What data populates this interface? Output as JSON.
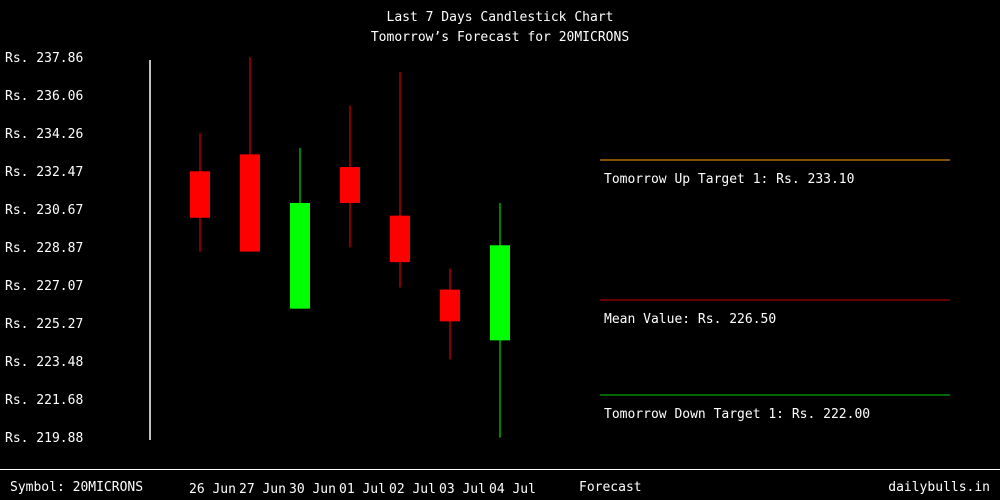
{
  "chart_data": {
    "type": "candlestick",
    "title": "Last 7 Days Candlestick Chart",
    "subtitle": "Tomorrow’s Forecast for 20MICRONS",
    "y_ticks": [
      "Rs. 237.86",
      "Rs. 236.06",
      "Rs. 234.26",
      "Rs. 232.47",
      "Rs. 230.67",
      "Rs. 228.87",
      "Rs. 227.07",
      "Rs. 225.27",
      "Rs. 223.48",
      "Rs. 221.68",
      "Rs. 219.88"
    ],
    "ylim": [
      219.88,
      237.86
    ],
    "categories": [
      "26 Jun",
      "27 Jun",
      "30 Jun",
      "01 Jul",
      "02 Jul",
      "03 Jul",
      "04 Jul"
    ],
    "candles": [
      {
        "date": "26 Jun",
        "open": 232.5,
        "high": 234.3,
        "low": 228.7,
        "close": 230.3,
        "color": "#ff0000"
      },
      {
        "date": "27 Jun",
        "open": 233.3,
        "high": 237.9,
        "low": 228.8,
        "close": 228.7,
        "color": "#ff0000"
      },
      {
        "date": "30 Jun",
        "open": 226.0,
        "high": 233.6,
        "low": 226.0,
        "close": 231.0,
        "color": "#00ff00"
      },
      {
        "date": "01 Jul",
        "open": 232.7,
        "high": 235.6,
        "low": 228.9,
        "close": 231.0,
        "color": "#ff0000"
      },
      {
        "date": "02 Jul",
        "open": 230.4,
        "high": 237.2,
        "low": 227.0,
        "close": 228.2,
        "color": "#ff0000"
      },
      {
        "date": "03 Jul",
        "open": 226.9,
        "high": 227.9,
        "low": 223.6,
        "close": 225.4,
        "color": "#ff0000"
      },
      {
        "date": "04 Jul",
        "open": 224.5,
        "high": 231.0,
        "low": 219.9,
        "close": 229.0,
        "color": "#00ff00"
      }
    ],
    "targets": [
      {
        "label": "Tomorrow Up Target 1: Rs. 233.10",
        "value": 233.1,
        "color": "#ffa500"
      },
      {
        "label": "Mean Value: Rs. 226.50",
        "value": 226.5,
        "color": "#cc0000"
      },
      {
        "label": "Tomorrow Down Target 1: Rs. 222.00",
        "value": 222.0,
        "color": "#00cc00"
      }
    ]
  },
  "footer": {
    "symbol": "Symbol: 20MICRONS",
    "forecast": "Forecast",
    "brand": "dailybulls.in"
  }
}
